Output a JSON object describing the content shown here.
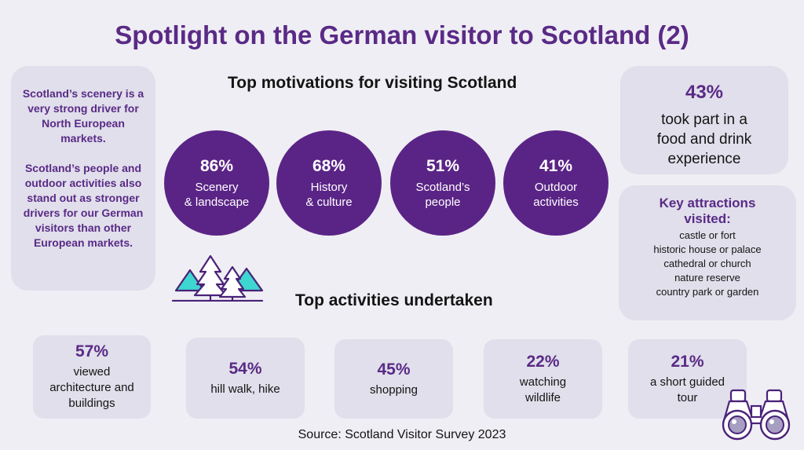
{
  "title": "Spotlight on the German visitor to Scotland (2)",
  "left_card": {
    "paragraph1": "Scotland’s scenery is a very strong driver for North European markets.",
    "paragraph2": "Scotland’s people and outdoor activities also stand out as stronger drivers for our German visitors than other European markets."
  },
  "motivations": {
    "heading": "Top motivations for visiting Scotland",
    "items": [
      {
        "pct": "86%",
        "label": "Scenery\n& landscape"
      },
      {
        "pct": "68%",
        "label": "History\n& culture"
      },
      {
        "pct": "51%",
        "label": "Scotland’s\npeople"
      },
      {
        "pct": "41%",
        "label": "Outdoor\nactivities"
      }
    ]
  },
  "food_drink": {
    "pct": "43%",
    "text": "took part in a\nfood and drink\nexperience"
  },
  "attractions": {
    "heading": "Key attractions\nvisited:",
    "items": [
      "castle or fort",
      "historic house or palace",
      "cathedral or church",
      "nature reserve",
      "country park or garden"
    ]
  },
  "activities": {
    "heading": "Top activities undertaken",
    "items": [
      {
        "pct": "57%",
        "label": "viewed\narchitecture and\nbuildings"
      },
      {
        "pct": "54%",
        "label": "hill walk, hike"
      },
      {
        "pct": "45%",
        "label": "shopping"
      },
      {
        "pct": "22%",
        "label": "watching\nwildlife"
      },
      {
        "pct": "21%",
        "label": "a short guided\ntour"
      }
    ]
  },
  "source": "Source: Scotland Visitor Survey 2023",
  "icons": [
    "trees-mountains-icon",
    "binoculars-icon"
  ],
  "colors": {
    "accent": "#5a2486",
    "card": "#e0dfeb",
    "background": "#efeef4",
    "highlight": "#3ed6d0"
  }
}
